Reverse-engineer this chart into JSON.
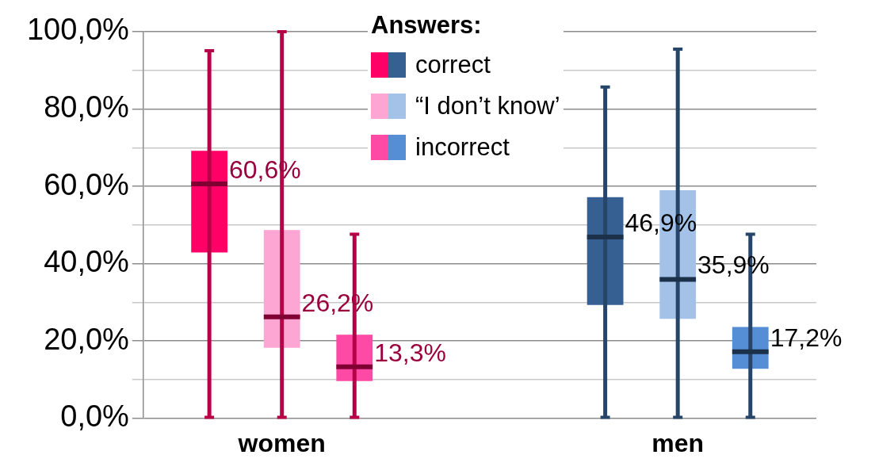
{
  "chart_data": {
    "type": "box",
    "categories": [
      "women",
      "men"
    ],
    "ylim": [
      0,
      100
    ],
    "yticks": [
      {
        "value": 0,
        "label": "0,0%"
      },
      {
        "value": 10,
        "label": null
      },
      {
        "value": 20,
        "label": "20,0%"
      },
      {
        "value": 30,
        "label": null
      },
      {
        "value": 40,
        "label": "40,0%"
      },
      {
        "value": 50,
        "label": null
      },
      {
        "value": 60,
        "label": "60,0%"
      },
      {
        "value": 70,
        "label": null
      },
      {
        "value": 80,
        "label": "80,0%"
      },
      {
        "value": 90,
        "label": null
      },
      {
        "value": 100,
        "label": "100,0%"
      }
    ],
    "grid": "y",
    "legend": "top",
    "legend_title": "Answers:",
    "series": [
      {
        "name": "correct",
        "colors": [
          "#ff0066",
          "#366092"
        ],
        "boxes": [
          {
            "low": 0,
            "q1": 42.9,
            "median": 60.6,
            "q3": 69.2,
            "high": 95.1
          },
          {
            "low": 0,
            "q1": 29.3,
            "median": 46.9,
            "q3": 57.2,
            "high": 85.7
          }
        ]
      },
      {
        "name": "“I don’t know’",
        "colors": [
          "#fda6d3",
          "#a4c2e8"
        ],
        "boxes": [
          {
            "low": 0,
            "q1": 18.2,
            "median": 26.2,
            "q3": 48.7,
            "high": 100
          },
          {
            "low": 0,
            "q1": 25.7,
            "median": 35.9,
            "q3": 59.0,
            "high": 95.5
          }
        ]
      },
      {
        "name": "incorrect",
        "colors": [
          "#ff4aa5",
          "#558ed5"
        ],
        "boxes": [
          {
            "low": 0,
            "q1": 9.6,
            "median": 13.3,
            "q3": 21.6,
            "high": 47.6
          },
          {
            "low": 0,
            "q1": 12.8,
            "median": 17.2,
            "q3": 23.6,
            "high": 47.6
          }
        ]
      }
    ],
    "annotations": [
      "60,6%",
      "26,2%",
      "13,3%",
      "46,9%",
      "35,9%",
      "17,2%"
    ]
  }
}
